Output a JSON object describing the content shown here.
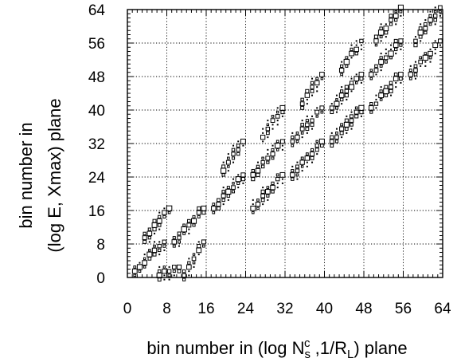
{
  "chart_data": {
    "type": "scatter",
    "subtype": "box-histogram-2d",
    "title": "",
    "xlabel_prefix": "bin number in (log N",
    "xlabel_sub1": "s",
    "xlabel_sup1": "c",
    "xlabel_mid": " ,1/R",
    "xlabel_sub2": "L",
    "xlabel_suffix": ") plane",
    "ylabel_line1": "bin number in",
    "ylabel_line2": "(log E, Xmax) plane",
    "xlim": [
      0,
      64
    ],
    "ylim": [
      0,
      64
    ],
    "x_ticks": [
      "0",
      "8",
      "16",
      "24",
      "32",
      "40",
      "48",
      "56",
      "64"
    ],
    "y_ticks": [
      "0",
      "8",
      "16",
      "24",
      "32",
      "40",
      "48",
      "56",
      "64"
    ],
    "grid": true,
    "clusters": [
      {
        "x": [
          1,
          7
        ],
        "y": [
          1,
          8
        ]
      },
      {
        "x": [
          6,
          10
        ],
        "y": [
          0,
          2
        ]
      },
      {
        "x": [
          3,
          8
        ],
        "y": [
          9,
          16
        ]
      },
      {
        "x": [
          9,
          15
        ],
        "y": [
          8,
          16
        ]
      },
      {
        "x": [
          11,
          15
        ],
        "y": [
          0,
          8
        ]
      },
      {
        "x": [
          17,
          23
        ],
        "y": [
          16,
          24
        ]
      },
      {
        "x": [
          19,
          23
        ],
        "y": [
          25,
          32
        ]
      },
      {
        "x": [
          25,
          31
        ],
        "y": [
          16,
          24
        ]
      },
      {
        "x": [
          25,
          31
        ],
        "y": [
          24,
          32
        ]
      },
      {
        "x": [
          27,
          31
        ],
        "y": [
          33,
          40
        ]
      },
      {
        "x": [
          33,
          39
        ],
        "y": [
          24,
          32
        ]
      },
      {
        "x": [
          33,
          39
        ],
        "y": [
          32,
          40
        ]
      },
      {
        "x": [
          35,
          39
        ],
        "y": [
          41,
          48
        ]
      },
      {
        "x": [
          41,
          47
        ],
        "y": [
          32,
          40
        ]
      },
      {
        "x": [
          41,
          47
        ],
        "y": [
          40,
          48
        ]
      },
      {
        "x": [
          43,
          47
        ],
        "y": [
          49,
          56
        ]
      },
      {
        "x": [
          49,
          55
        ],
        "y": [
          40,
          48
        ]
      },
      {
        "x": [
          49,
          55
        ],
        "y": [
          48,
          56
        ]
      },
      {
        "x": [
          50,
          55
        ],
        "y": [
          56,
          64
        ]
      },
      {
        "x": [
          57,
          63
        ],
        "y": [
          48,
          56
        ]
      },
      {
        "x": [
          58,
          63
        ],
        "y": [
          56,
          64
        ]
      }
    ]
  }
}
